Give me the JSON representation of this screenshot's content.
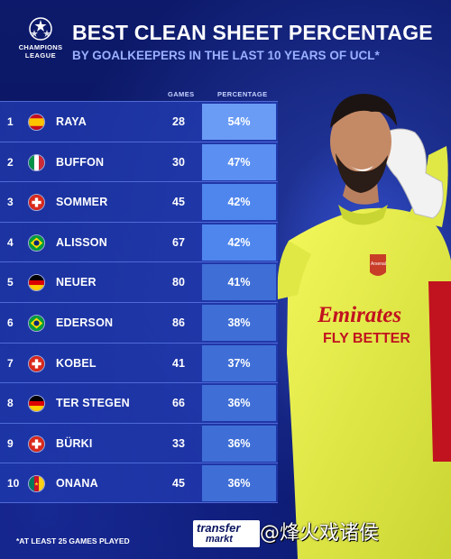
{
  "header": {
    "title": "BEST CLEAN SHEET PERCENTAGE",
    "subtitle": "BY GOALKEEPERS IN THE LAST 10 YEARS OF UCL*",
    "logo": {
      "line1": "CHAMPIONS",
      "line2": "LEAGUE",
      "icon": "ucl-starball-icon"
    }
  },
  "columns": {
    "games": "GAMES",
    "percentage": "PERCENTAGE"
  },
  "rows": [
    {
      "rank": "1",
      "flag": "spain",
      "name": "RAYA",
      "games": "28",
      "pct": "54%"
    },
    {
      "rank": "2",
      "flag": "italy",
      "name": "BUFFON",
      "games": "30",
      "pct": "47%"
    },
    {
      "rank": "3",
      "flag": "switzerland",
      "name": "SOMMER",
      "games": "45",
      "pct": "42%"
    },
    {
      "rank": "4",
      "flag": "brazil",
      "name": "ALISSON",
      "games": "67",
      "pct": "42%"
    },
    {
      "rank": "5",
      "flag": "germany",
      "name": "NEUER",
      "games": "80",
      "pct": "41%"
    },
    {
      "rank": "6",
      "flag": "brazil",
      "name": "EDERSON",
      "games": "86",
      "pct": "38%"
    },
    {
      "rank": "7",
      "flag": "switzerland",
      "name": "KOBEL",
      "games": "41",
      "pct": "37%"
    },
    {
      "rank": "8",
      "flag": "germany",
      "name": "TER STEGEN",
      "games": "66",
      "pct": "36%"
    },
    {
      "rank": "9",
      "flag": "switzerland",
      "name": "BÜRKI",
      "games": "33",
      "pct": "36%"
    },
    {
      "rank": "10",
      "flag": "cameroon",
      "name": "ONANA",
      "games": "45",
      "pct": "36%"
    }
  ],
  "player": {
    "shirt_text1": "Emirates",
    "shirt_text2": "FLY BETTER",
    "badge": "Arsenal"
  },
  "footnote": "*AT LEAST 25 GAMES PLAYED",
  "brand": {
    "line1": "transfer",
    "line2": "markt"
  },
  "watermark": "@烽火戏诸侯",
  "colors": {
    "background": "#0b1760",
    "pct_cell": "#4f86ee",
    "shirt": "#e6f04a"
  }
}
